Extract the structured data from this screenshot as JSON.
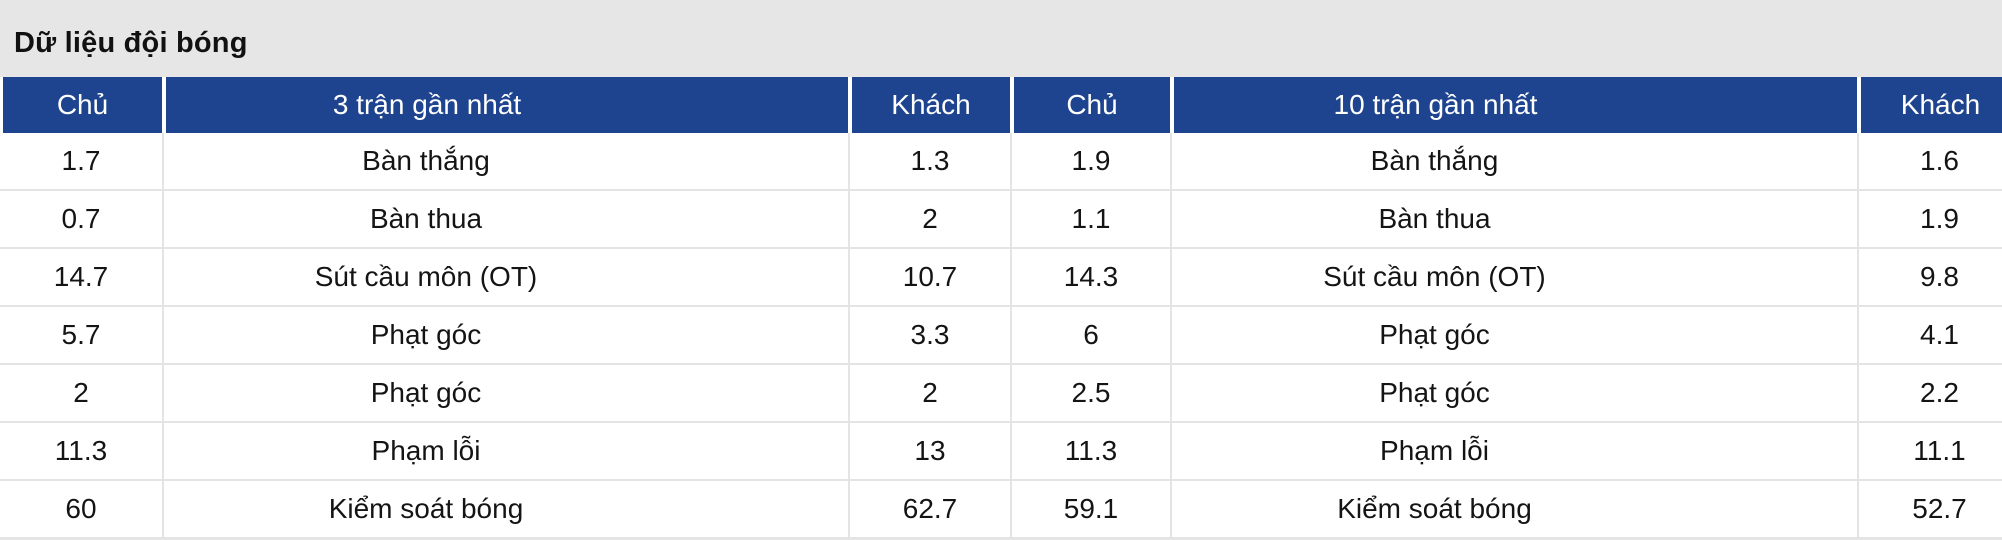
{
  "title": "Dữ liệu đội bóng",
  "colors": {
    "header_bg": "#1e448f",
    "header_text": "#ffffff",
    "title_band_bg": "#e6e6e7",
    "row_divider": "#e4e4e4",
    "body_text": "#141414"
  },
  "table": {
    "headers": [
      "Chủ",
      "3 trận gần nhất",
      "Khách",
      "Chủ",
      "10 trận gần nhất",
      "Khách"
    ],
    "rows": [
      [
        "1.7",
        "Bàn thắng",
        "1.3",
        "1.9",
        "Bàn thắng",
        "1.6"
      ],
      [
        "0.7",
        "Bàn thua",
        "2",
        "1.1",
        "Bàn thua",
        "1.9"
      ],
      [
        "14.7",
        "Sút cầu môn (OT)",
        "10.7",
        "14.3",
        "Sút cầu môn (OT)",
        "9.8"
      ],
      [
        "5.7",
        "Phạt góc",
        "3.3",
        "6",
        "Phạt góc",
        "4.1"
      ],
      [
        "2",
        "Phạt góc",
        "2",
        "2.5",
        "Phạt góc",
        "2.2"
      ],
      [
        "11.3",
        "Phạm lỗi",
        "13",
        "11.3",
        "Phạm lỗi",
        "11.1"
      ],
      [
        "60",
        "Kiểm soát bóng",
        "62.7",
        "59.1",
        "Kiểm soát bóng",
        "52.7"
      ]
    ]
  }
}
